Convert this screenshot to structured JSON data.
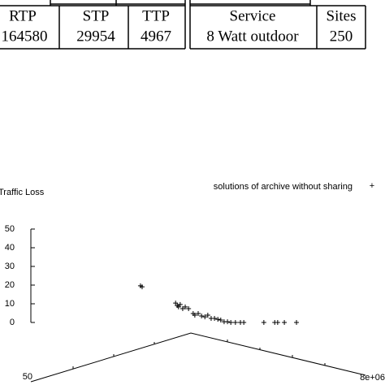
{
  "tables": [
    {
      "header": [
        "RTP",
        "STP",
        "TTP"
      ],
      "rows": [
        [
          "164580",
          "29954",
          "4967"
        ]
      ]
    },
    {
      "header": [
        "Service",
        "Sites"
      ],
      "rows": [
        [
          "8 Watt outdoor",
          "250"
        ]
      ]
    }
  ],
  "chart_data": {
    "type": "scatter",
    "ylabel": "Traffic Loss",
    "series": [
      {
        "name": "solutions of archive without sharing",
        "color": "#000000",
        "x": [
          2620000,
          2660000,
          3460000,
          3500000,
          3530000,
          3570000,
          3630000,
          3690000,
          3770000,
          3880000,
          3920000,
          4000000,
          4080000,
          4160000,
          4230000,
          4310000,
          4390000,
          4470000,
          4540000,
          4620000,
          4700000,
          4780000,
          4890000,
          5010000,
          5090000,
          5570000,
          5830000,
          5900000,
          6060000,
          6350000
        ],
        "values": [
          19.6,
          19.1,
          10.4,
          9.1,
          8.3,
          9.6,
          7.4,
          8.3,
          7.4,
          4.8,
          3.9,
          4.8,
          3.5,
          3.0,
          3.9,
          2.2,
          2.2,
          1.7,
          1.3,
          0.4,
          0.4,
          0,
          0,
          0,
          0,
          0,
          0,
          0,
          0,
          0
        ]
      }
    ],
    "xlim": [
      0,
      8000000
    ],
    "xticks": [
      {
        "value": 8000000,
        "label": "8e+06"
      }
    ],
    "ylim": [
      0,
      50
    ],
    "yticks": [
      0,
      10,
      20,
      30,
      40,
      50
    ],
    "depth_ticks": [
      50
    ]
  }
}
